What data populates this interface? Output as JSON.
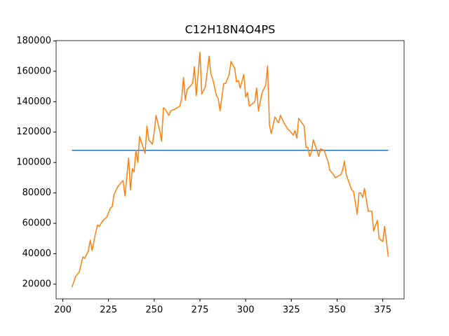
{
  "chart_data": {
    "type": "line",
    "title": "C12H18N4O4PS",
    "xlim": [
      196.35,
      386.65
    ],
    "xticks": [
      200,
      225,
      250,
      275,
      300,
      325,
      350,
      375
    ],
    "ylim": [
      10300,
      180200
    ],
    "yticks": [
      20000,
      40000,
      60000,
      80000,
      100000,
      120000,
      140000,
      160000,
      180000
    ],
    "grid": false,
    "series": [
      {
        "color": "#1f77b4",
        "x": [
          205,
          378
        ],
        "values": [
          108000,
          108000
        ]
      },
      {
        "color": "#ff7f0e",
        "x": [
          205,
          207,
          209,
          211,
          212,
          214,
          215,
          216,
          218,
          219,
          220,
          222,
          224,
          226,
          227,
          228,
          230,
          232,
          233,
          234,
          236,
          237,
          238,
          239,
          240,
          241,
          242,
          245,
          246,
          247,
          249,
          250,
          251,
          253,
          254,
          255,
          256,
          258,
          259,
          261,
          264,
          265,
          266,
          267,
          268,
          271,
          272,
          273,
          275,
          276,
          278,
          280,
          281,
          282,
          284,
          285,
          286,
          288,
          289,
          291,
          292,
          294,
          295,
          296,
          297,
          299,
          300,
          301,
          302,
          305,
          306,
          307,
          309,
          311,
          312,
          313,
          314,
          316,
          318,
          319,
          321,
          323,
          324,
          326,
          327,
          328,
          329,
          332,
          333,
          334,
          335,
          336,
          337,
          339,
          340,
          341,
          343,
          344,
          345,
          346,
          348,
          349,
          352,
          353,
          354,
          355,
          358,
          359,
          361,
          362,
          363,
          364,
          365,
          367,
          369,
          370,
          372,
          373,
          375,
          376,
          378
        ],
        "values": [
          18000,
          25000,
          28000,
          38000,
          37000,
          42000,
          49000,
          42000,
          54000,
          59000,
          58000,
          62000,
          64000,
          70000,
          71000,
          79000,
          84000,
          87000,
          88000,
          78000,
          103000,
          82000,
          96000,
          94000,
          108000,
          100000,
          117000,
          106000,
          124000,
          115000,
          112000,
          120000,
          131000,
          121000,
          114000,
          136000,
          135000,
          131000,
          134000,
          135000,
          137000,
          142000,
          156000,
          141000,
          148000,
          152000,
          163000,
          144000,
          172500,
          145000,
          150000,
          170000,
          158000,
          155000,
          144000,
          142000,
          134000,
          152000,
          152000,
          158000,
          166500,
          162000,
          153000,
          154000,
          149000,
          158000,
          143000,
          146000,
          137000,
          140000,
          149000,
          134000,
          146000,
          151000,
          163500,
          125000,
          119000,
          130000,
          126000,
          131000,
          126000,
          122000,
          121000,
          118000,
          121000,
          116000,
          129000,
          124000,
          110000,
          110000,
          104000,
          107000,
          115000,
          108000,
          104000,
          109000,
          108000,
          104000,
          101000,
          95000,
          92000,
          90000,
          92000,
          95000,
          101000,
          92000,
          82000,
          81000,
          66000,
          80000,
          80000,
          77000,
          83000,
          68000,
          68000,
          55000,
          62000,
          50000,
          48000,
          58000,
          38000
        ]
      }
    ]
  }
}
